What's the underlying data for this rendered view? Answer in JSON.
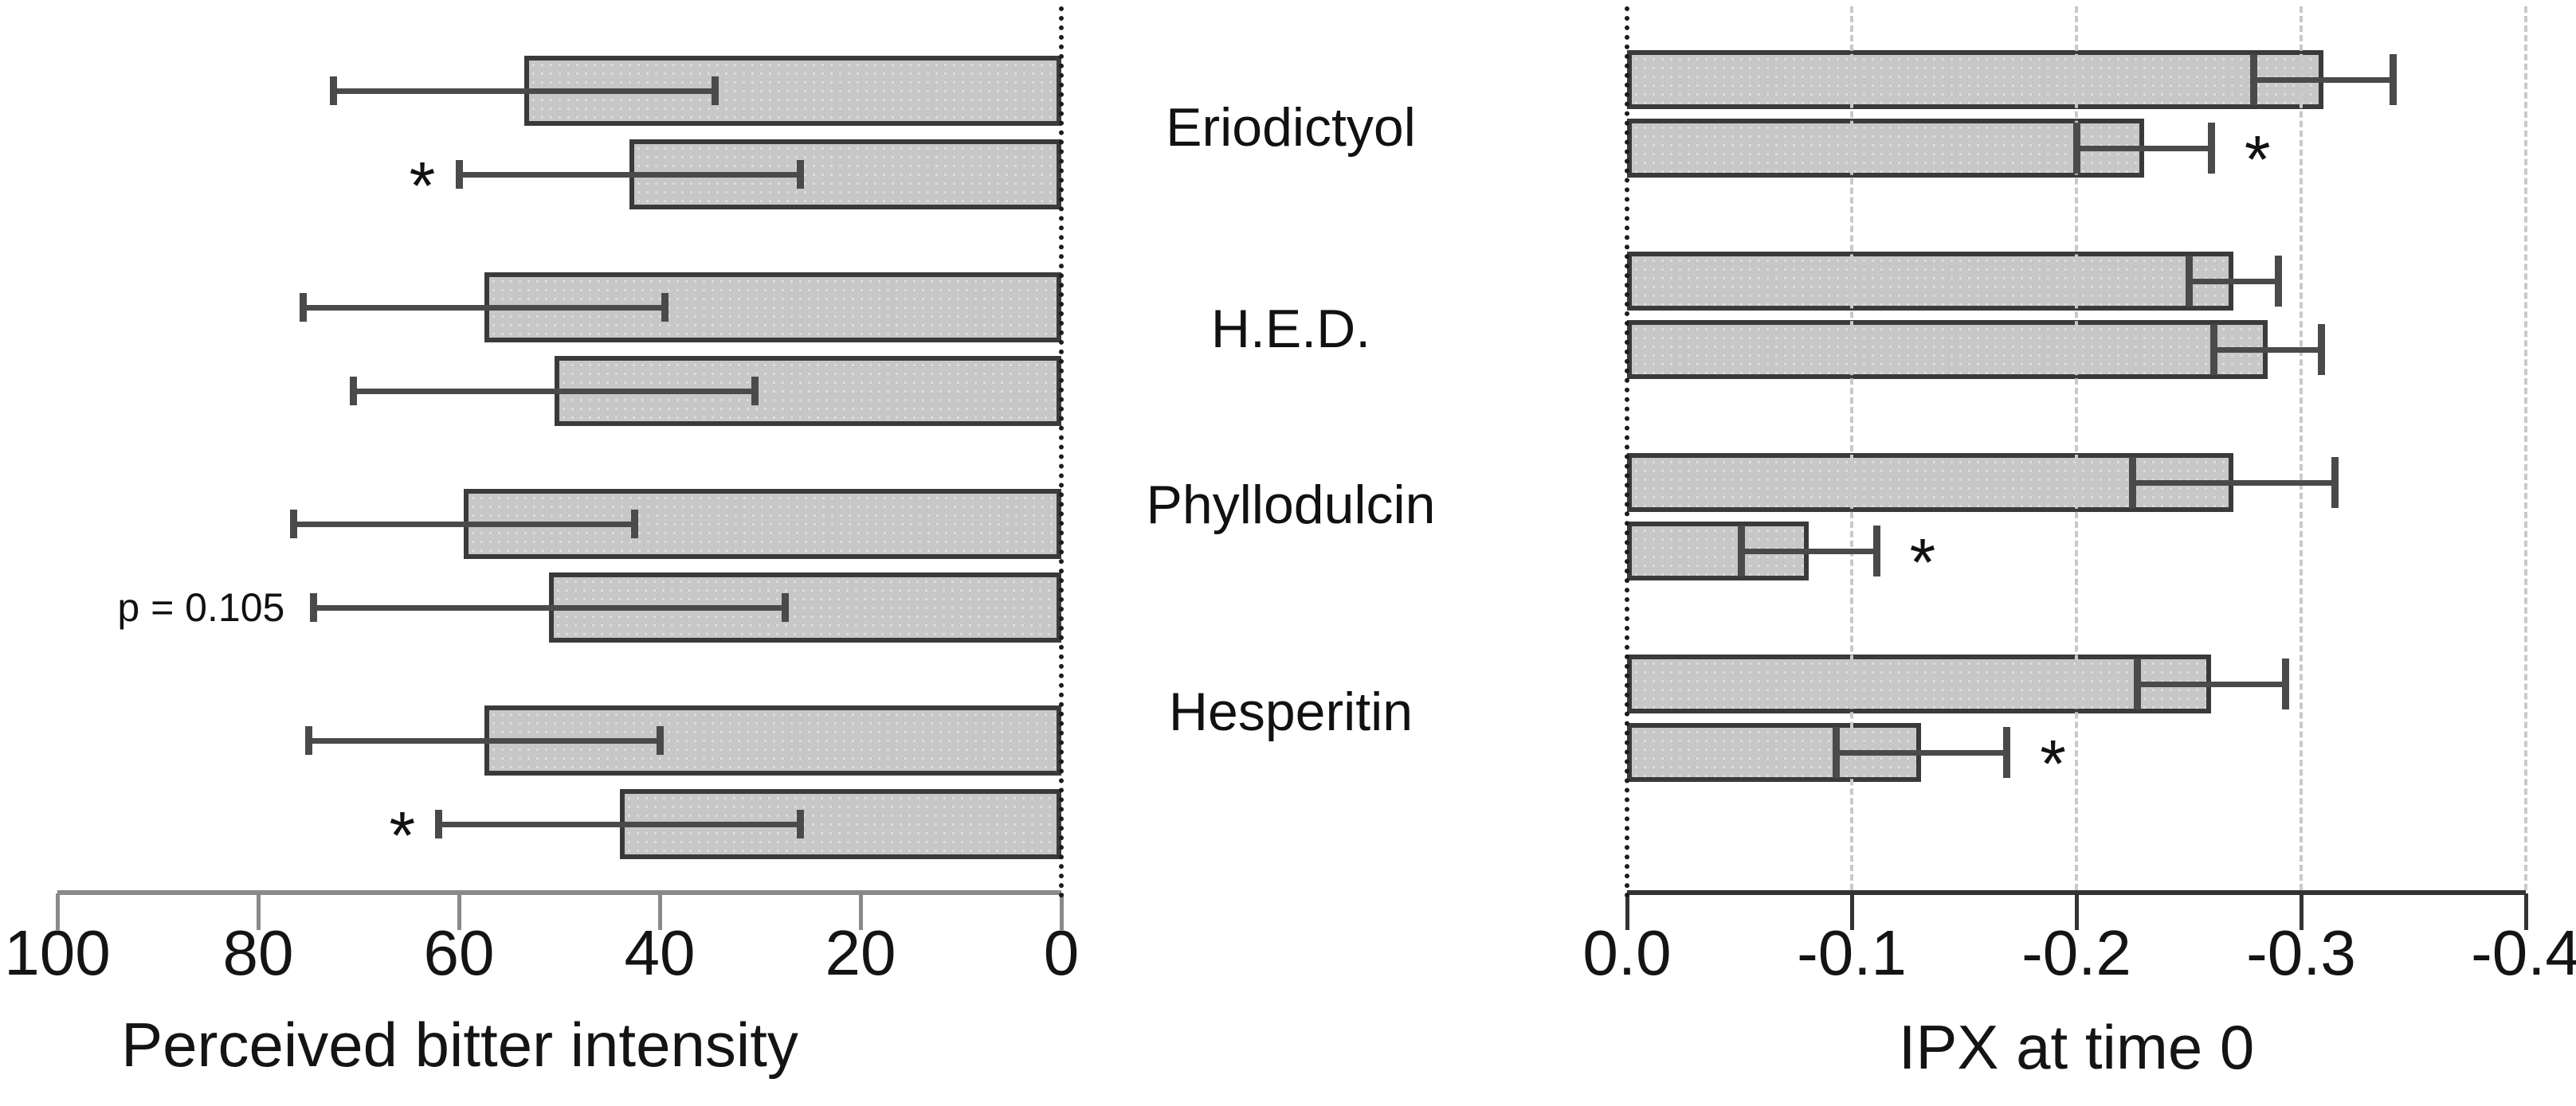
{
  "figure": {
    "background": "#ffffff",
    "bar_fill": "#c7c7c7",
    "bar_border": "#3a3a3a",
    "error_color": "#4a4a4a",
    "gridline_color": "#c9c9c9",
    "left_axis_color": "#8a8a8a",
    "right_axis_color": "#333333",
    "categories": [
      "Eriodictyol",
      "H.E.D.",
      "Phyllodulcin",
      "Hesperitin"
    ]
  },
  "chart_data": [
    {
      "type": "bar",
      "orientation": "horizontal",
      "bars_extend": "left",
      "title": "",
      "xlabel": "Perceived bitter intensity",
      "categories": [
        "Eriodictyol",
        "H.E.D.",
        "Phyllodulcin",
        "Hesperitin"
      ],
      "xlim": [
        100,
        0
      ],
      "grid": false,
      "ticks": [
        {
          "label": "100",
          "value": 100
        },
        {
          "label": "80",
          "value": 80
        },
        {
          "label": "60",
          "value": 60
        },
        {
          "label": "40",
          "value": 40
        },
        {
          "label": "20",
          "value": 20
        },
        {
          "label": "0",
          "value": 0
        }
      ],
      "series": [
        {
          "name": "upper-bar",
          "values": [
            53.5,
            57.5,
            59.5,
            57.5
          ],
          "errors": [
            19,
            18,
            17,
            17.5
          ],
          "annotations": [
            "",
            "",
            "",
            ""
          ]
        },
        {
          "name": "lower-bar",
          "values": [
            43,
            50.5,
            51,
            44
          ],
          "errors": [
            17,
            20,
            23.5,
            18
          ],
          "annotations": [
            "*",
            "",
            "p = 0.105",
            "*"
          ]
        }
      ]
    },
    {
      "type": "bar",
      "orientation": "horizontal",
      "bars_extend": "right",
      "title": "",
      "xlabel": "IPX at time 0",
      "categories": [
        "Eriodictyol",
        "H.E.D.",
        "Phyllodulcin",
        "Hesperitin"
      ],
      "xlim": [
        0,
        -0.4
      ],
      "grid": true,
      "ticks": [
        {
          "label": "0.0",
          "value": 0
        },
        {
          "label": "-0.1",
          "value": -0.1
        },
        {
          "label": "-0.2",
          "value": -0.2
        },
        {
          "label": "-0.3",
          "value": -0.3
        },
        {
          "label": "-0.4",
          "value": -0.4
        }
      ],
      "series": [
        {
          "name": "upper-bar",
          "values": [
            -0.31,
            -0.27,
            -0.27,
            -0.26
          ],
          "errors": [
            0.031,
            0.02,
            0.045,
            0.033
          ],
          "annotations": [
            "",
            "",
            "",
            ""
          ]
        },
        {
          "name": "lower-bar",
          "values": [
            -0.23,
            -0.285,
            -0.081,
            -0.131
          ],
          "errors": [
            0.03,
            0.024,
            0.03,
            0.038
          ],
          "annotations": [
            "*",
            "",
            "*",
            "*"
          ]
        }
      ]
    }
  ]
}
